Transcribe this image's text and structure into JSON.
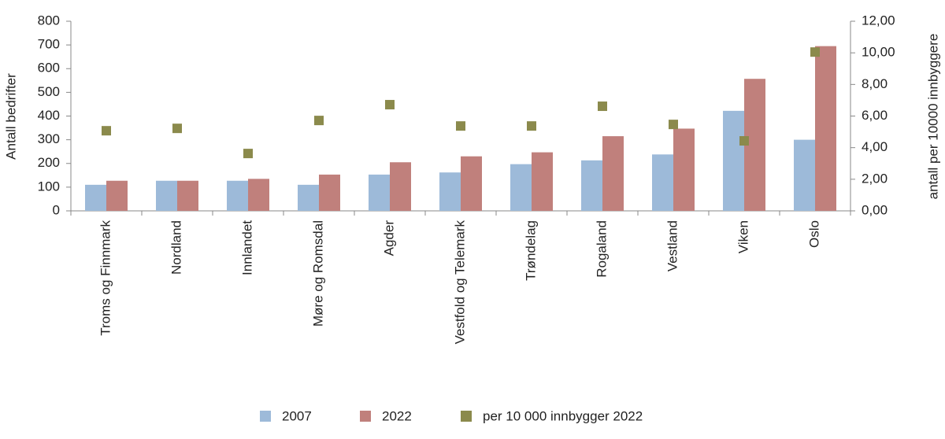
{
  "chart_data": {
    "type": "bar",
    "categories": [
      "Troms og Finnmark",
      "Nordland",
      "Innlandet",
      "Møre og Romsdal",
      "Agder",
      "Vestfold og Telemark",
      "Trøndelag",
      "Rogaland",
      "Vestland",
      "Viken",
      "Oslo"
    ],
    "series": [
      {
        "name": "2007",
        "color": "#9dbad9",
        "values": [
          110,
          127,
          127,
          110,
          153,
          162,
          197,
          213,
          238,
          422,
          300
        ]
      },
      {
        "name": "2022",
        "color": "#c0807c",
        "values": [
          127,
          127,
          135,
          153,
          205,
          230,
          247,
          315,
          347,
          557,
          695
        ]
      },
      {
        "name": "per 10 000 innbygger 2022",
        "color": "#8b8a4c",
        "type": "scatter",
        "axis": "y2",
        "values": [
          5.07,
          5.22,
          3.63,
          5.72,
          6.72,
          5.37,
          5.37,
          6.62,
          5.47,
          4.43,
          10.05
        ]
      }
    ],
    "ylabel": "Antall  bedrifter",
    "y2label": "antall  per 10000 innbyggere",
    "ylim": [
      0,
      800
    ],
    "yticks": [
      0,
      100,
      200,
      300,
      400,
      500,
      600,
      700,
      800
    ],
    "y2lim": [
      0,
      12
    ],
    "y2ticks": [
      {
        "value": 0,
        "label": "0,00"
      },
      {
        "value": 2,
        "label": "2,00"
      },
      {
        "value": 4,
        "label": "4,00"
      },
      {
        "value": 6,
        "label": "6,00"
      },
      {
        "value": 8,
        "label": "8,00"
      },
      {
        "value": 10,
        "label": "10,00"
      },
      {
        "value": 12,
        "label": "12,00"
      }
    ],
    "grid": false
  }
}
